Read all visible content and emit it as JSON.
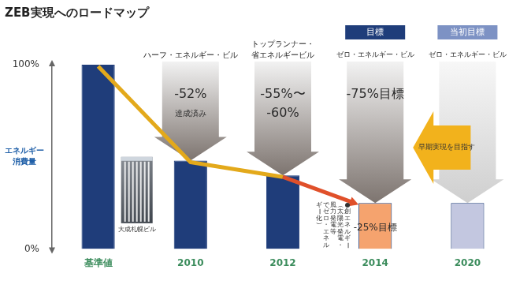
{
  "chart_data": {
    "type": "bar",
    "title": "ZEB実現へのロードマップ",
    "y_label": "エネルギー消費量",
    "categories": [
      "基準値",
      "2010",
      "2012",
      "2014",
      "2020"
    ],
    "values": [
      100,
      48,
      40,
      25,
      25
    ],
    "colors": [
      "#1f3d7a",
      "#1f3d7a",
      "#1f3d7a",
      "#f5a36e",
      "#c3c7e0"
    ],
    "ylim": [
      0,
      100
    ],
    "yticks": [
      {
        "value": 0,
        "label": "0%"
      },
      {
        "value": 100,
        "label": "100%"
      }
    ],
    "grid": false,
    "headers": [
      null,
      [
        "ハーフ・エネルギー・ビル"
      ],
      [
        "トップランナー・",
        "省エネルギービル"
      ],
      [
        "ゼロ・エネルギー・ビル"
      ],
      [
        "ゼロ・エネルギー・ビル"
      ]
    ],
    "badges": [
      null,
      null,
      null,
      "目標",
      "当初目標"
    ],
    "arrow_labels": [
      null,
      [
        "-52%",
        "達成済み"
      ],
      [
        "-55%〜",
        "-60%"
      ],
      [
        "-75%目標"
      ],
      null
    ],
    "bar_labels": [
      null,
      null,
      null,
      "-25%目標",
      null
    ],
    "side_arrow_label": "早期実現を目指す",
    "annotation_lines": [
      "●創エネルギー",
      "（太陽光発電・",
      "風力発電等",
      "でゼロ・エネル",
      "ギー化）"
    ],
    "photo_label": "大成札幌ビル"
  }
}
